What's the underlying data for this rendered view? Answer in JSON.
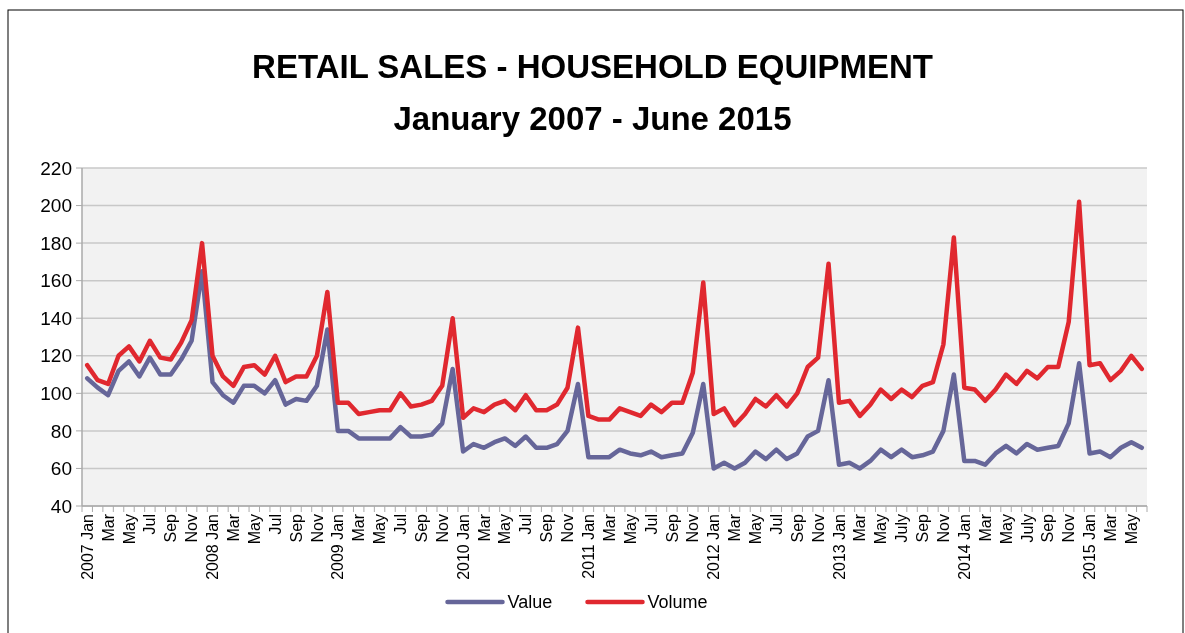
{
  "chart_data": {
    "type": "line",
    "title": "RETAIL SALES - HOUSEHOLD EQUIPMENT",
    "subtitle": "January 2007 - June 2015",
    "categories": [
      "2007 Jan",
      null,
      "Mar",
      null,
      "May",
      null,
      "Jul",
      null,
      "Sep",
      null,
      "Nov",
      null,
      "2008 Jan",
      null,
      "Mar",
      null,
      "May",
      null,
      "Jul",
      null,
      "Sep",
      null,
      "Nov",
      null,
      "2009 Jan",
      null,
      "Mar",
      null,
      "May",
      null,
      "Jul",
      null,
      "Sep",
      null,
      "Nov",
      null,
      "2010 Jan",
      null,
      "Mar",
      null,
      "May",
      null,
      "Jul",
      null,
      "Sep",
      null,
      "Nov",
      null,
      "2011 Jan",
      null,
      "Mar",
      null,
      "May",
      null,
      "Jul",
      null,
      "Sep",
      null,
      "Nov",
      null,
      "2012 Jan",
      null,
      "Mar",
      null,
      "May",
      null,
      "Jul",
      null,
      "Sep",
      null,
      "Nov",
      null,
      "2013 Jan",
      null,
      "Mar",
      null,
      "May",
      null,
      "July",
      null,
      "Sep",
      null,
      "Nov",
      null,
      "2014 Jan",
      null,
      "Mar",
      null,
      "May",
      null,
      "July",
      null,
      "Sep",
      null,
      "Nov",
      null,
      "2015 Jan",
      null,
      "Mar",
      null,
      "May",
      null
    ],
    "series": [
      {
        "name": "Value",
        "color": "#666699",
        "values": [
          108,
          103,
          99,
          112,
          117,
          109,
          119,
          110,
          110,
          118,
          128,
          165,
          106,
          99,
          95,
          104,
          104,
          100,
          107,
          94,
          97,
          96,
          104,
          134,
          80,
          80,
          76,
          76,
          76,
          76,
          82,
          77,
          77,
          78,
          84,
          113,
          69,
          73,
          71,
          74,
          76,
          72,
          77,
          71,
          71,
          73,
          80,
          105,
          66,
          66,
          66,
          70,
          68,
          67,
          69,
          66,
          67,
          68,
          79,
          105,
          60,
          63,
          60,
          63,
          69,
          65,
          70,
          65,
          68,
          77,
          80,
          107,
          62,
          63,
          60,
          64,
          70,
          66,
          70,
          66,
          67,
          69,
          80,
          110,
          64,
          64,
          62,
          68,
          72,
          68,
          73,
          70,
          71,
          72,
          84,
          116,
          68,
          69,
          66,
          71,
          74,
          71
        ]
      },
      {
        "name": "Volume",
        "color": "#e0282f",
        "values": [
          115,
          107,
          105,
          120,
          125,
          117,
          128,
          119,
          118,
          127,
          139,
          180,
          120,
          109,
          104,
          114,
          115,
          110,
          120,
          106,
          109,
          109,
          120,
          154,
          95,
          95,
          89,
          90,
          91,
          91,
          100,
          93,
          94,
          96,
          104,
          140,
          87,
          92,
          90,
          94,
          96,
          91,
          99,
          91,
          91,
          94,
          103,
          135,
          88,
          86,
          86,
          92,
          90,
          88,
          94,
          90,
          95,
          95,
          111,
          159,
          89,
          92,
          83,
          89,
          97,
          93,
          99,
          93,
          100,
          114,
          119,
          169,
          95,
          96,
          88,
          94,
          102,
          97,
          102,
          98,
          104,
          106,
          126,
          183,
          103,
          102,
          96,
          102,
          110,
          105,
          112,
          108,
          114,
          114,
          138,
          202,
          115,
          116,
          107,
          112,
          120,
          113
        ]
      }
    ],
    "ylim": [
      40,
      220
    ],
    "yticks": [
      40,
      60,
      80,
      100,
      120,
      140,
      160,
      180,
      200,
      220
    ],
    "grid": "y",
    "legend": "bottom",
    "marker": "none",
    "line_style": "solid"
  }
}
